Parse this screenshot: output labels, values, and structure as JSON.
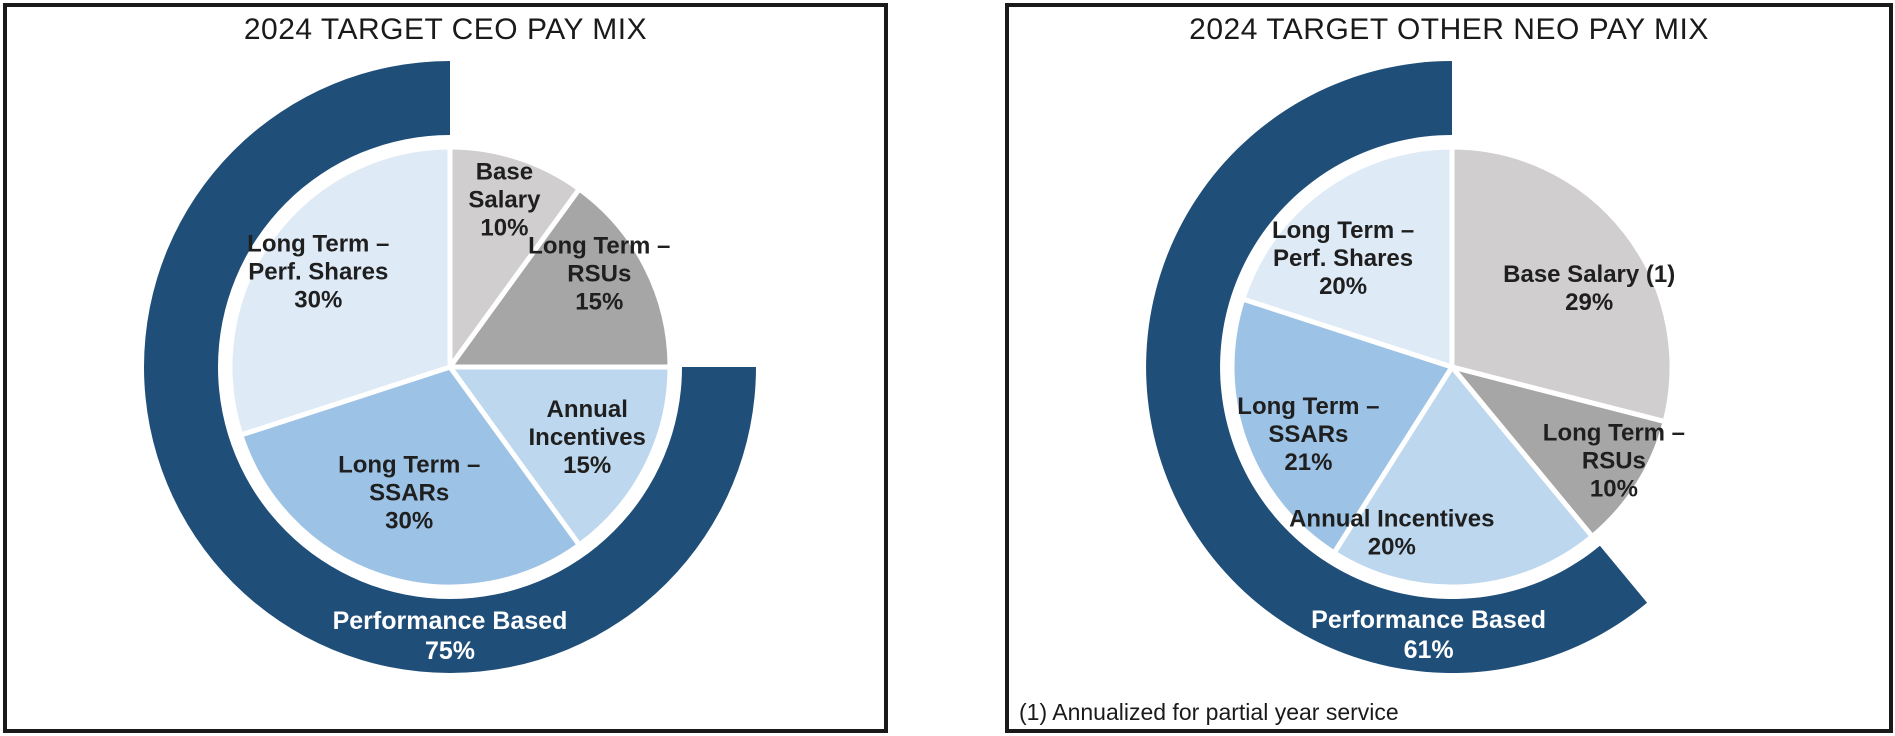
{
  "page": {
    "background": "#ffffff",
    "panel_border_color": "#1a1a1a",
    "label_text_color": "#1f1f1f",
    "ring_text_color": "#ffffff"
  },
  "panels": [
    {
      "title": "2024 TARGET CEO PAY MIX",
      "footnote": ""
    },
    {
      "title": "2024 TARGET OTHER NEO PAY MIX",
      "footnote": "(1) Annualized for partial year service"
    }
  ],
  "chart_data": [
    {
      "type": "pie",
      "title": "2024 TARGET CEO PAY MIX",
      "start_angle_deg": 0,
      "direction": "clockwise",
      "label_color": "#1f1f1f",
      "slices": [
        {
          "label": "Base Salary",
          "value_pct": 10,
          "color": "#D0CECE",
          "lines": [
            "Base",
            "Salary",
            "10%"
          ],
          "label_r": 0.8
        },
        {
          "label": "Long Term – RSUs",
          "value_pct": 15,
          "color": "#A6A6A6",
          "lines": [
            "Long Term –",
            "RSUs",
            "15%"
          ],
          "label_angle": 58,
          "label_r": 0.8
        },
        {
          "label": "Annual Incentives",
          "value_pct": 15,
          "color": "#BDD7EE",
          "lines": [
            "Annual",
            "Incentives",
            "15%"
          ],
          "label_r": 0.7
        },
        {
          "label": "Long Term – SSARs",
          "value_pct": 30,
          "color": "#9CC2E5",
          "lines": [
            "Long Term –",
            "SSARs",
            "30%"
          ],
          "label_r": 0.6
        },
        {
          "label": "Long Term – Perf. Shares",
          "value_pct": 30,
          "color": "#DEEAF6",
          "lines": [
            "Long Term –",
            "Perf. Shares",
            "30%"
          ],
          "label_r": 0.74
        }
      ],
      "outer_ring": {
        "label": "Performance Based",
        "value_pct": 75,
        "color": "#1F4E79",
        "lines": [
          "Performance Based",
          "75%"
        ],
        "ends_at_deg": 360,
        "label_angle": 180,
        "text_color": "#ffffff"
      }
    },
    {
      "type": "pie",
      "title": "2024 TARGET OTHER NEO PAY MIX",
      "start_angle_deg": 0,
      "direction": "clockwise",
      "label_color": "#1f1f1f",
      "footnote": "(1) Annualized for partial year service",
      "slices": [
        {
          "label": "Base Salary (1)",
          "value_pct": 29,
          "color": "#D0CECE",
          "lines": [
            "Base Salary (1)",
            "29%"
          ],
          "label_angle": 60,
          "label_r": 0.72
        },
        {
          "label": "Long Term – RSUs",
          "value_pct": 10,
          "color": "#A6A6A6",
          "lines": [
            "Long Term –",
            "RSUs",
            "10%"
          ],
          "label_angle": 120,
          "label_r": 0.85
        },
        {
          "label": "Annual Incentives",
          "value_pct": 20,
          "color": "#BDD7EE",
          "lines": [
            "Annual Incentives",
            "20%"
          ],
          "label_angle": 200,
          "label_r": 0.8
        },
        {
          "label": "Long Term – SSARs",
          "value_pct": 21,
          "color": "#9CC2E5",
          "lines": [
            "Long Term –",
            "SSARs",
            "21%"
          ],
          "label_angle": 245,
          "label_r": 0.72
        },
        {
          "label": "Long Term – Perf. Shares",
          "value_pct": 20,
          "color": "#DEEAF6",
          "lines": [
            "Long Term –",
            "Perf. Shares",
            "20%"
          ],
          "label_angle": 315,
          "label_r": 0.7
        }
      ],
      "outer_ring": {
        "label": "Performance Based",
        "value_pct": 61,
        "color": "#1F4E79",
        "lines": [
          "Performance Based",
          "61%"
        ],
        "ends_at_deg": 360,
        "label_angle": 185,
        "text_color": "#ffffff"
      }
    }
  ]
}
